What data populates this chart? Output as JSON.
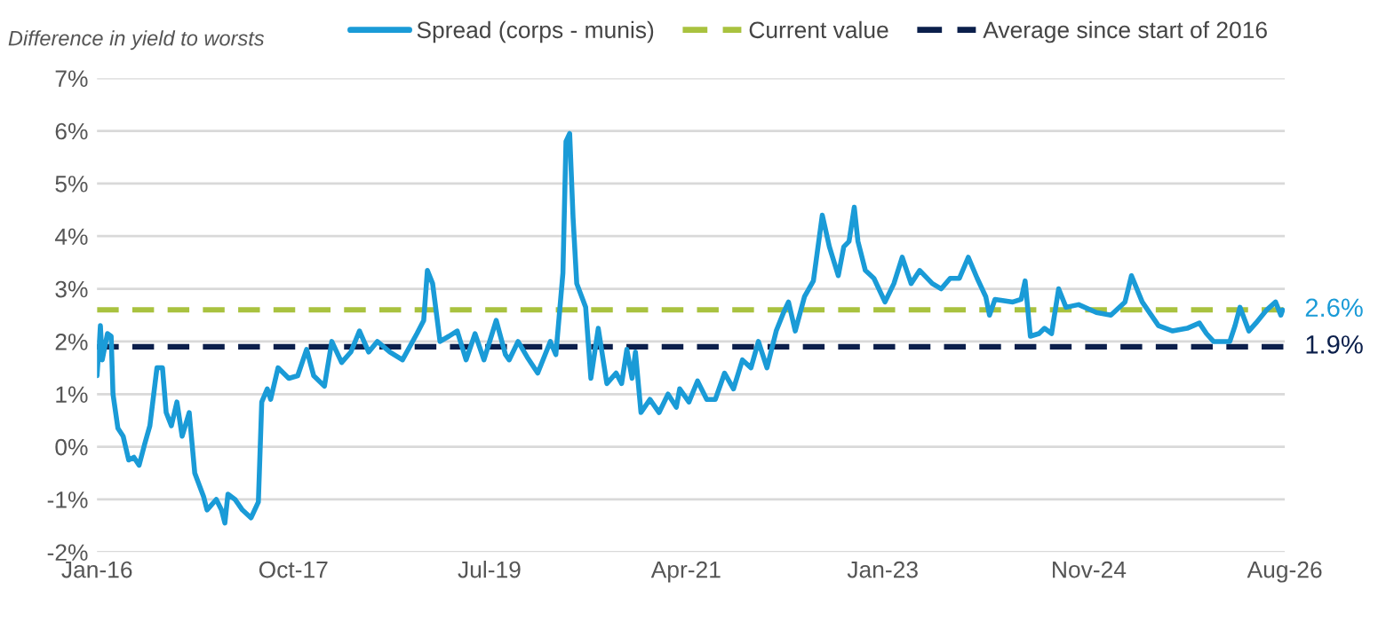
{
  "chart_data": {
    "type": "line",
    "ylabel": "Difference in yield to worsts",
    "x": [
      "2016-01-01",
      "2016-01-12",
      "2016-01-18",
      "2016-02-04",
      "2016-02-16",
      "2016-02-22",
      "2016-03-09",
      "2016-03-26",
      "2016-04-13",
      "2016-04-30",
      "2016-05-17",
      "2016-06-04",
      "2016-06-21",
      "2016-07-14",
      "2016-08-01",
      "2016-08-13",
      "2016-08-30",
      "2016-09-17",
      "2016-10-04",
      "2016-10-27",
      "2016-11-14",
      "2016-12-13",
      "2016-12-24",
      "2017-01-23",
      "2017-02-09",
      "2017-02-20",
      "2017-03-02",
      "2017-03-25",
      "2017-04-18",
      "2017-05-16",
      "2017-06-09",
      "2017-06-20",
      "2017-07-08",
      "2017-07-19",
      "2017-08-12",
      "2017-09-16",
      "2017-10-15",
      "2017-11-13",
      "2017-12-06",
      "2018-01-10",
      "2018-02-03",
      "2018-03-07",
      "2018-04-06",
      "2018-05-04",
      "2018-06-03",
      "2018-07-01",
      "2018-08-11",
      "2018-09-21",
      "2018-11-07",
      "2018-11-29",
      "2018-12-11",
      "2018-12-28",
      "2019-01-21",
      "2019-02-19",
      "2019-03-18",
      "2019-04-16",
      "2019-05-15",
      "2019-06-13",
      "2019-07-23",
      "2019-08-22",
      "2019-09-03",
      "2019-10-02",
      "2019-11-01",
      "2019-12-05",
      "2020-01-15",
      "2020-02-02",
      "2020-02-25",
      "2020-03-06",
      "2020-03-18",
      "2020-03-29",
      "2020-04-10",
      "2020-05-09",
      "2020-05-26",
      "2020-06-19",
      "2020-07-17",
      "2020-08-16",
      "2020-09-03",
      "2020-09-20",
      "2020-10-07",
      "2020-10-18",
      "2020-11-05",
      "2020-12-04",
      "2021-01-03",
      "2021-02-01",
      "2021-02-28",
      "2021-03-11",
      "2021-04-10",
      "2021-05-08",
      "2021-06-07",
      "2021-07-05",
      "2021-08-04",
      "2021-09-02",
      "2021-10-01",
      "2021-10-29",
      "2021-11-22",
      "2021-12-20",
      "2022-01-19",
      "2022-02-12",
      "2022-02-28",
      "2022-03-22",
      "2022-04-21",
      "2022-05-20",
      "2022-06-18",
      "2022-07-11",
      "2022-08-09",
      "2022-08-27",
      "2022-09-13",
      "2022-09-30",
      "2022-10-12",
      "2022-11-05",
      "2022-12-03",
      "2023-01-08",
      "2023-02-06",
      "2023-03-05",
      "2023-04-03",
      "2023-05-01",
      "2023-06-11",
      "2023-07-10",
      "2023-08-08",
      "2023-09-07",
      "2023-10-06",
      "2023-11-04",
      "2023-12-02",
      "2023-12-14",
      "2024-01-01",
      "2024-02-28",
      "2024-03-26",
      "2024-04-08",
      "2024-04-25",
      "2024-05-23",
      "2024-06-10",
      "2024-07-03",
      "2024-07-26",
      "2024-08-19",
      "2024-09-29",
      "2024-11-26",
      "2025-01-12",
      "2025-02-27",
      "2025-03-20",
      "2025-04-24",
      "2025-06-16",
      "2025-08-01",
      "2025-09-17",
      "2025-10-27",
      "2025-11-19",
      "2025-12-12",
      "2026-02-03",
      "2026-02-20",
      "2026-03-08",
      "2026-04-06",
      "2026-04-29",
      "2026-06-03",
      "2026-07-02",
      "2026-07-19",
      "2026-07-25"
    ],
    "series": [
      {
        "name": "Spread (corps - munis)",
        "color": "#1a9bd7",
        "values": [
          1.35,
          2.3,
          1.65,
          2.15,
          2.1,
          1.0,
          0.35,
          0.2,
          -0.25,
          -0.2,
          -0.35,
          0.05,
          0.4,
          1.5,
          1.5,
          0.65,
          0.4,
          0.85,
          0.2,
          0.65,
          -0.5,
          -0.95,
          -1.2,
          -1.0,
          -1.2,
          -1.45,
          -0.9,
          -1.0,
          -1.2,
          -1.35,
          -1.05,
          0.85,
          1.1,
          0.9,
          1.5,
          1.3,
          1.35,
          1.85,
          1.35,
          1.15,
          2.0,
          1.6,
          1.8,
          2.2,
          1.8,
          2.0,
          1.8,
          1.65,
          2.15,
          2.4,
          3.35,
          3.1,
          2.0,
          2.1,
          2.2,
          1.65,
          2.15,
          1.65,
          2.4,
          1.75,
          1.65,
          2.0,
          1.7,
          1.4,
          2.0,
          1.75,
          3.3,
          5.8,
          5.95,
          4.35,
          3.1,
          2.65,
          1.3,
          2.25,
          1.2,
          1.4,
          1.2,
          1.85,
          1.3,
          1.8,
          0.65,
          0.9,
          0.65,
          1.0,
          0.75,
          1.1,
          0.85,
          1.25,
          0.9,
          0.9,
          1.4,
          1.1,
          1.65,
          1.5,
          2.0,
          1.5,
          2.2,
          2.55,
          2.75,
          2.2,
          2.85,
          3.15,
          4.4,
          3.8,
          3.25,
          3.8,
          3.9,
          4.55,
          3.9,
          3.35,
          3.2,
          2.75,
          3.1,
          3.6,
          3.1,
          3.35,
          3.1,
          3.0,
          3.2,
          3.2,
          3.6,
          3.2,
          2.85,
          2.5,
          2.8,
          2.75,
          2.8,
          3.15,
          2.1,
          2.15,
          2.25,
          2.15,
          3.0,
          2.65,
          2.7,
          2.55,
          2.5,
          2.75,
          3.25,
          2.75,
          2.3,
          2.2,
          2.25,
          2.35,
          2.15,
          2.0,
          2.0,
          2.3,
          2.65,
          2.2,
          2.35,
          2.6,
          2.75,
          2.5,
          2.6
        ]
      }
    ],
    "ref_lines": [
      {
        "axis": "y",
        "value": 2.6,
        "label": "Current value",
        "color": "#a9c23f",
        "line_style": "dashed"
      },
      {
        "axis": "y",
        "value": 1.9,
        "label": "Average since start of 2016",
        "color": "#0b1f4b",
        "line_style": "dashed"
      }
    ],
    "annotations": [
      {
        "text": "2.6%",
        "x": "2026-08-01",
        "y": 2.6
      },
      {
        "text": "1.9%",
        "x": "2026-08-01",
        "y": 1.9
      }
    ],
    "xlim": [
      "2016-01-01",
      "2026-08-01"
    ],
    "xticks": [
      {
        "value": "2016-01-01",
        "label": "Jan-16"
      },
      {
        "value": "2017-10-01",
        "label": "Oct-17"
      },
      {
        "value": "2019-07-01",
        "label": "Jul-19"
      },
      {
        "value": "2021-04-01",
        "label": "Apr-21"
      },
      {
        "value": "2023-01-01",
        "label": "Jan-23"
      },
      {
        "value": "2024-11-01",
        "label": "Nov-24"
      },
      {
        "value": "2026-08-01",
        "label": "Aug-26"
      }
    ],
    "ylim": [
      -2,
      7
    ],
    "yticks": [
      {
        "value": -2,
        "label": "-2%"
      },
      {
        "value": -1,
        "label": "-1%"
      },
      {
        "value": 0,
        "label": "0%"
      },
      {
        "value": 1,
        "label": "1%"
      },
      {
        "value": 2,
        "label": "2%"
      },
      {
        "value": 3,
        "label": "3%"
      },
      {
        "value": 4,
        "label": "4%"
      },
      {
        "value": 5,
        "label": "5%"
      },
      {
        "value": 6,
        "label": "6%"
      },
      {
        "value": 7,
        "label": "7%"
      }
    ],
    "grid": "y",
    "legend": "top",
    "marker": "none",
    "line_style": "solid"
  }
}
